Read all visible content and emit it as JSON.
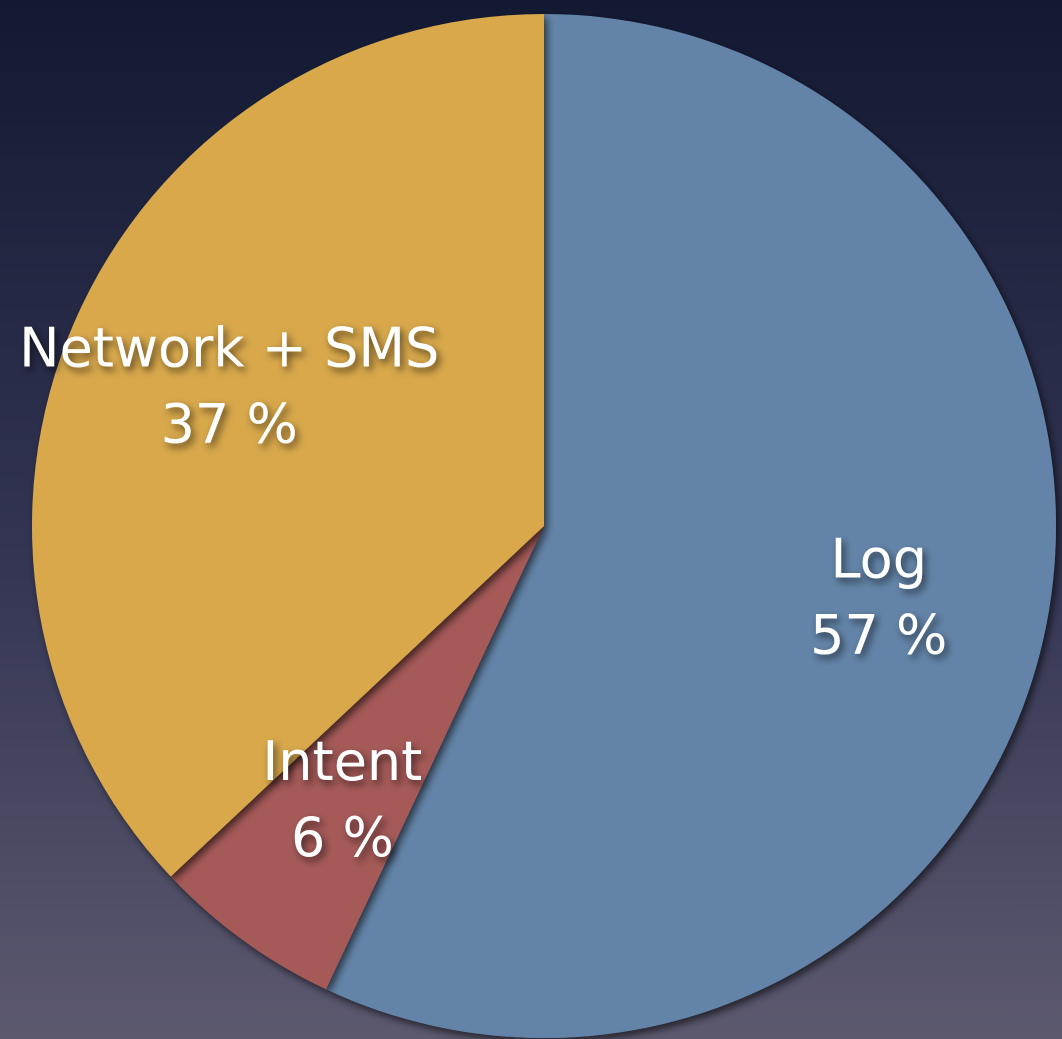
{
  "chart_data": {
    "type": "pie",
    "categories": [
      "Log",
      "Intent",
      "Network + SMS"
    ],
    "values": [
      57,
      6,
      37
    ],
    "value_labels": [
      "57 %",
      "6 %",
      "37 %"
    ],
    "colors": [
      "#6384a8",
      "#a55a58",
      "#d8a84c"
    ]
  }
}
